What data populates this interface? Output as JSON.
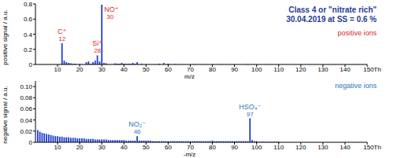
{
  "chart_data": [
    {
      "type": "bar",
      "title": "Class 4 or \"nitrate rich\"",
      "subtitle": "30.04.2019 at SS = 0.6 %",
      "x_label": "m/z",
      "y_label": "positive signal / a.u.",
      "xlim": [
        0,
        150
      ],
      "xticks": [
        10,
        20,
        30,
        40,
        50,
        60,
        70,
        80,
        90,
        100,
        110,
        120,
        130,
        140,
        {
          "value": 150,
          "label": "150Th"
        }
      ],
      "ylim": [
        0,
        0.8
      ],
      "yticks": [
        0,
        0.2,
        0.4,
        0.6,
        0.8
      ],
      "series": [
        {
          "name": "positive ions",
          "color": "#1f3fd0",
          "x": [
            12,
            13,
            14,
            15,
            16,
            17,
            18,
            20,
            23,
            24,
            25,
            26,
            27,
            28,
            29,
            30,
            31,
            32,
            36,
            37,
            38,
            39,
            40,
            41,
            42,
            43,
            44,
            45,
            46,
            48,
            50,
            56,
            58,
            60,
            63,
            72,
            84,
            96
          ],
          "values": [
            0.28,
            0.05,
            0.03,
            0.02,
            0.015,
            0.01,
            0.01,
            0.005,
            0.03,
            0.04,
            0.01,
            0.03,
            0.05,
            0.12,
            0.04,
            0.79,
            0.02,
            0.015,
            0.015,
            0.01,
            0.01,
            0.02,
            0.01,
            0.01,
            0.01,
            0.01,
            0.02,
            0.01,
            0.03,
            0.01,
            0.005,
            0.01,
            0.02,
            0.01,
            0.005,
            0.005,
            0.005,
            0.005
          ]
        }
      ],
      "annotations": [
        {
          "text": "C⁺",
          "label": "12",
          "x": 12
        },
        {
          "text": "Si⁺",
          "label": "28",
          "x": 28
        },
        {
          "text": "NO⁺",
          "label": "30",
          "x": 30
        }
      ]
    },
    {
      "type": "bar",
      "x_label": "-m/z",
      "y_label": "negative signal / a.u.",
      "xlim": [
        0,
        150
      ],
      "xticks": [
        10,
        20,
        30,
        40,
        50,
        60,
        70,
        80,
        90,
        100,
        110,
        120,
        130,
        140,
        {
          "value": 150,
          "label": "150Th"
        }
      ],
      "ylim": [
        0,
        0.11
      ],
      "yticks": [
        0,
        0.02,
        0.04,
        0.06,
        0.08,
        {
          "value": 0.1,
          "label": "0.10"
        }
      ],
      "series": [
        {
          "name": "negative ions",
          "color": "#1f3fd0",
          "x": [
            1,
            2,
            3,
            4,
            5,
            6,
            7,
            8,
            9,
            10,
            11,
            12,
            13,
            14,
            15,
            16,
            17,
            18,
            19,
            20,
            21,
            22,
            23,
            24,
            25,
            26,
            27,
            28,
            29,
            30,
            31,
            32,
            33,
            34,
            35,
            36,
            37,
            38,
            39,
            40,
            41,
            42,
            43,
            44,
            45,
            46,
            47,
            48,
            49,
            50,
            51,
            52,
            53,
            54,
            55,
            56,
            57,
            58,
            59,
            60,
            61,
            62,
            63,
            64,
            65,
            66,
            67,
            68,
            69,
            70,
            71,
            72,
            73,
            74,
            75,
            76,
            77,
            78,
            79,
            80,
            81,
            82,
            83,
            84,
            85,
            86,
            87,
            88,
            89,
            90,
            91,
            92,
            93,
            94,
            95,
            96,
            97,
            98,
            99,
            100,
            101,
            102,
            103,
            104,
            105,
            106,
            107,
            108,
            109,
            110
          ],
          "values": [
            0.022,
            0.019,
            0.017,
            0.016,
            0.015,
            0.014,
            0.013,
            0.012,
            0.011,
            0.011,
            0.01,
            0.01,
            0.009,
            0.009,
            0.009,
            0.008,
            0.008,
            0.008,
            0.007,
            0.007,
            0.007,
            0.007,
            0.006,
            0.006,
            0.006,
            0.006,
            0.005,
            0.005,
            0.005,
            0.005,
            0.005,
            0.005,
            0.004,
            0.004,
            0.004,
            0.004,
            0.004,
            0.004,
            0.004,
            0.004,
            0.003,
            0.003,
            0.003,
            0.003,
            0.003,
            0.011,
            0.003,
            0.003,
            0.003,
            0.003,
            0.003,
            0.003,
            0.002,
            0.002,
            0.002,
            0.002,
            0.002,
            0.002,
            0.002,
            0.002,
            0.002,
            0.002,
            0.002,
            0.002,
            0.002,
            0.002,
            0.002,
            0.002,
            0.002,
            0.002,
            0.002,
            0.002,
            0.002,
            0.002,
            0.002,
            0.002,
            0.002,
            0.002,
            0.002,
            0.003,
            0.002,
            0.002,
            0.002,
            0.002,
            0.002,
            0.002,
            0.002,
            0.002,
            0.002,
            0.002,
            0.002,
            0.002,
            0.002,
            0.002,
            0.002,
            0.002,
            0.043,
            0.004,
            0.002,
            0.002,
            0.001,
            0.001,
            0.001,
            0.001,
            0.001,
            0.001,
            0.001,
            0.001,
            0.001,
            0.001
          ]
        }
      ],
      "annotations": [
        {
          "text": "NO₂⁻",
          "label": "46",
          "x": 46
        },
        {
          "text": "HSO₄⁻",
          "label": "97",
          "x": 97
        }
      ]
    }
  ]
}
